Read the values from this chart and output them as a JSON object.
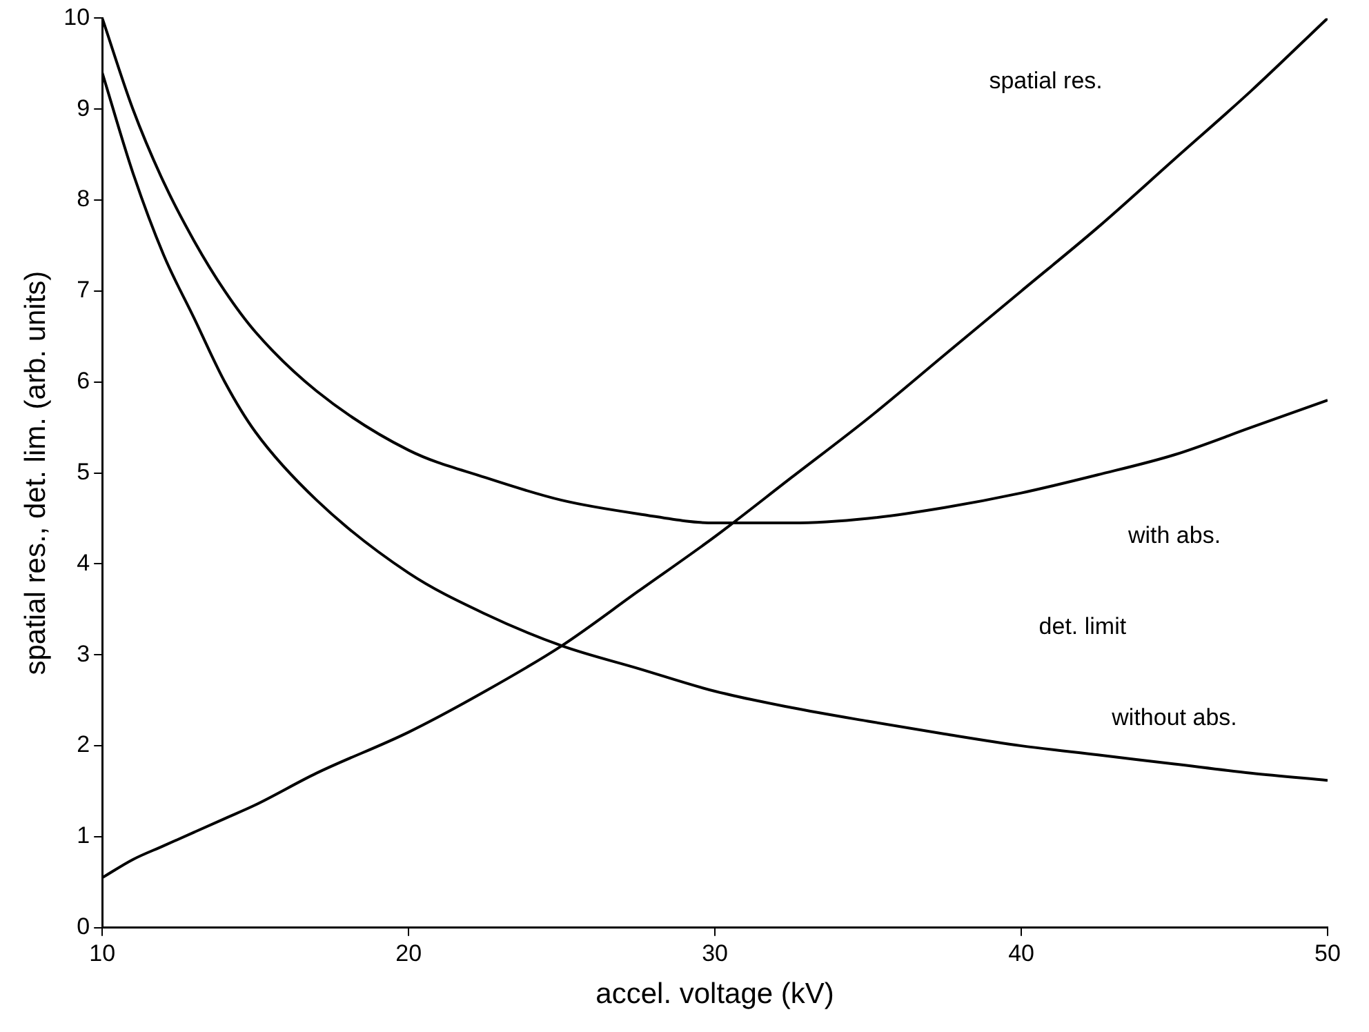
{
  "chart_data": {
    "type": "line",
    "xlabel": "accel. voltage (kV)",
    "ylabel": "spatial res., det. lim. (arb. units)",
    "x": [
      10,
      11,
      12,
      13,
      14,
      15,
      17,
      20,
      22.5,
      25,
      27.5,
      30,
      32.5,
      35,
      37.5,
      40,
      42.5,
      45,
      47.5,
      50
    ],
    "series": [
      {
        "color": "#000000",
        "values": [
          0.55,
          0.75,
          0.9,
          1.05,
          1.2,
          1.35,
          1.7,
          2.15,
          2.6,
          3.1,
          3.7,
          4.3,
          4.95,
          5.6,
          6.3,
          7.0,
          7.7,
          8.45,
          9.2,
          10.0
        ]
      },
      {
        "color": "#000000",
        "values": [
          10.0,
          9.0,
          8.2,
          7.55,
          7.0,
          6.55,
          5.9,
          5.25,
          4.95,
          4.7,
          4.55,
          4.45,
          4.45,
          4.5,
          4.62,
          4.78,
          4.98,
          5.2,
          5.5,
          5.8
        ]
      },
      {
        "color": "#000000",
        "values": [
          9.4,
          8.3,
          7.4,
          6.7,
          6.0,
          5.45,
          4.7,
          3.9,
          3.45,
          3.1,
          2.85,
          2.6,
          2.42,
          2.27,
          2.13,
          2.0,
          1.9,
          1.8,
          1.7,
          1.62
        ]
      }
    ],
    "xlim": [
      10,
      50
    ],
    "xticks": [
      10,
      20,
      30,
      40,
      50
    ],
    "ylim": [
      0,
      10
    ],
    "yticks": [
      0,
      1,
      2,
      3,
      4,
      5,
      6,
      7,
      8,
      9,
      10
    ],
    "grid": false,
    "legend": false,
    "marker": "none",
    "line_style": "solid",
    "annotations": [
      "spatial res.",
      "with abs.",
      "det. limit",
      "without abs."
    ]
  }
}
